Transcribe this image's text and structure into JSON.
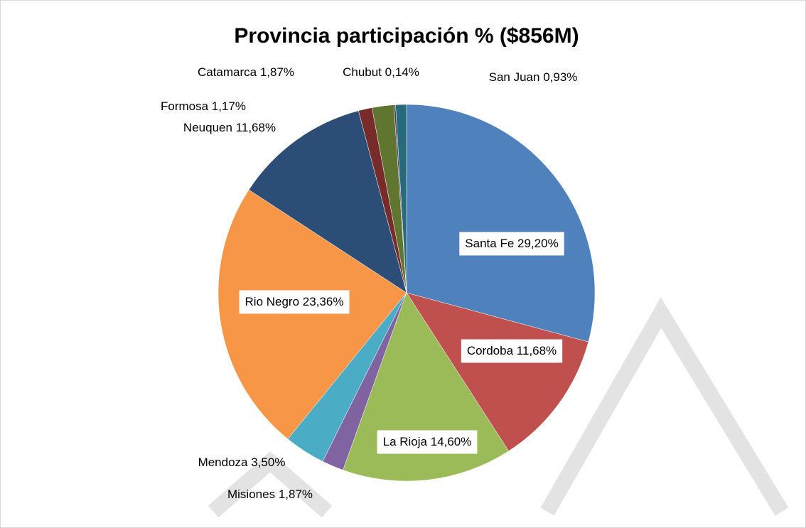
{
  "chart_data": {
    "type": "pie",
    "title": "Provincia participación % ($856M)",
    "categories": [
      "Santa Fe",
      "Cordoba",
      "La Rioja",
      "Misiones",
      "Mendoza",
      "Rio Negro",
      "Neuquen",
      "Formosa",
      "Catamarca",
      "Chubut",
      "San Juan"
    ],
    "values": [
      29.2,
      11.68,
      14.6,
      1.87,
      3.5,
      23.36,
      11.68,
      1.17,
      1.87,
      0.14,
      0.93
    ],
    "value_labels": [
      "29,20%",
      "11,68%",
      "14,60%",
      "1,87%",
      "3,50%",
      "23,36%",
      "11,68%",
      "1,17%",
      "1,87%",
      "0,14%",
      "0,93%"
    ],
    "colors": [
      "#4f81bd",
      "#c0504d",
      "#9bbb59",
      "#8064a2",
      "#4bacc6",
      "#f79646",
      "#2c4d75",
      "#772c2a",
      "#5f7530",
      "#4d3b62",
      "#276a7c"
    ]
  }
}
